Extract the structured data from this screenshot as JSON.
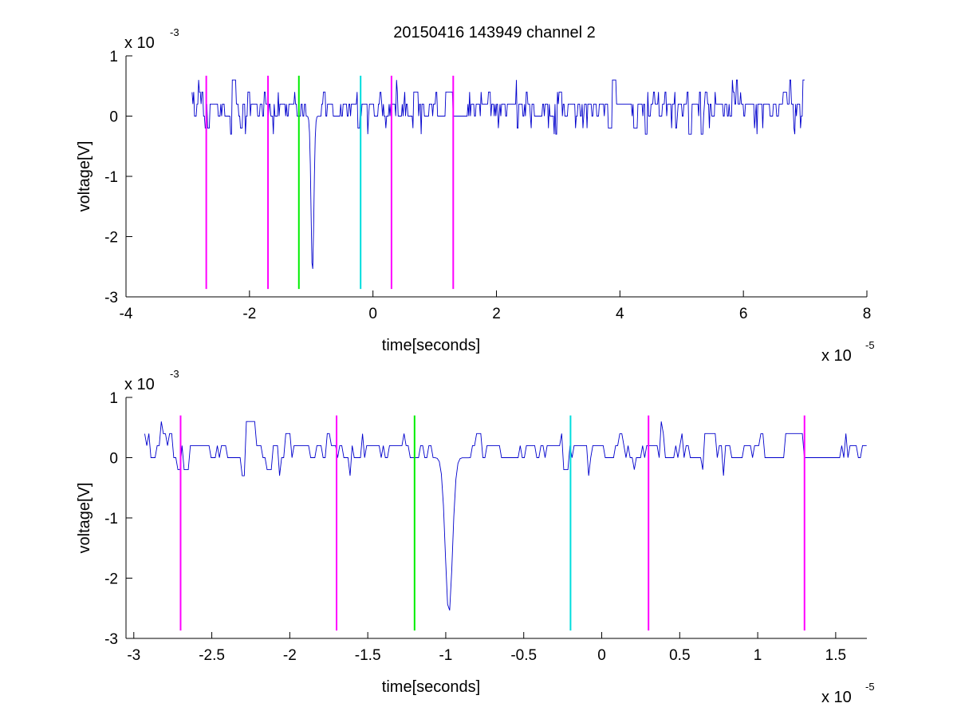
{
  "figure": {
    "title": "20150416 143949 channel 2"
  },
  "chart_data": [
    {
      "type": "line",
      "title": "20150416 143949 channel 2",
      "xlabel": "time[seconds]",
      "ylabel": "voltage[V]",
      "x_multiplier": {
        "base": "x 10",
        "exponent": "-5"
      },
      "y_multiplier": {
        "base": "x 10",
        "exponent": "-3"
      },
      "xlim": [
        -4,
        8
      ],
      "ylim": [
        -3,
        1
      ],
      "xticks": [
        -4,
        -2,
        0,
        2,
        4,
        6,
        8
      ],
      "xtick_labels": [
        "-4",
        "-2",
        "0",
        "2",
        "4",
        "6",
        "8"
      ],
      "yticks": [
        1,
        0,
        -1,
        -2,
        -3
      ],
      "ytick_labels": [
        "1",
        "0",
        "-1",
        "-2",
        "-3"
      ],
      "grid": false,
      "signal": {
        "color": "#0000cc",
        "x_start": -2.93,
        "x_end": 7.0,
        "baseline": 0.1,
        "spike_x": -0.98,
        "spike_min": -2.6
      },
      "markers": [
        {
          "x": -2.7,
          "color": "#ff00ff",
          "y_top": 0.67,
          "y_bottom": -2.87
        },
        {
          "x": -1.7,
          "color": "#ff00ff",
          "y_top": 0.67,
          "y_bottom": -2.87
        },
        {
          "x": -1.2,
          "color": "#00ee00",
          "y_top": 0.67,
          "y_bottom": -2.87
        },
        {
          "x": -0.2,
          "color": "#00dddd",
          "y_top": 0.67,
          "y_bottom": -2.87
        },
        {
          "x": 0.3,
          "color": "#ff00ff",
          "y_top": 0.67,
          "y_bottom": -2.87
        },
        {
          "x": 1.3,
          "color": "#ff00ff",
          "y_top": 0.67,
          "y_bottom": -2.87
        }
      ]
    },
    {
      "type": "line",
      "title": "",
      "xlabel": "time[seconds]",
      "ylabel": "voltage[V]",
      "x_multiplier": {
        "base": "x 10",
        "exponent": "-5"
      },
      "y_multiplier": {
        "base": "x 10",
        "exponent": "-3"
      },
      "xlim": [
        -3.05,
        1.7
      ],
      "ylim": [
        -3,
        1
      ],
      "xticks": [
        -3,
        -2.5,
        -2,
        -1.5,
        -1,
        -0.5,
        0,
        0.5,
        1,
        1.5
      ],
      "xtick_labels": [
        "-3",
        "-2.5",
        "-2",
        "-1.5",
        "-1",
        "-0.5",
        "0",
        "0.5",
        "1",
        "1.5"
      ],
      "yticks": [
        1,
        0,
        -1,
        -2,
        -3
      ],
      "ytick_labels": [
        "1",
        "0",
        "-1",
        "-2",
        "-3"
      ],
      "grid": false,
      "signal": {
        "color": "#0000cc",
        "x_start": -2.93,
        "x_end": 1.7,
        "baseline": 0.1,
        "spike_x": -0.98,
        "spike_min": -2.6
      },
      "markers": [
        {
          "x": -2.7,
          "color": "#ff00ff",
          "y_top": 0.7,
          "y_bottom": -2.87
        },
        {
          "x": -1.7,
          "color": "#ff00ff",
          "y_top": 0.7,
          "y_bottom": -2.87
        },
        {
          "x": -1.2,
          "color": "#00ee00",
          "y_top": 0.7,
          "y_bottom": -2.87
        },
        {
          "x": -0.2,
          "color": "#00dddd",
          "y_top": 0.7,
          "y_bottom": -2.87
        },
        {
          "x": 0.3,
          "color": "#ff00ff",
          "y_top": 0.7,
          "y_bottom": -2.87
        },
        {
          "x": 1.3,
          "color": "#ff00ff",
          "y_top": 0.7,
          "y_bottom": -2.87
        }
      ]
    }
  ]
}
